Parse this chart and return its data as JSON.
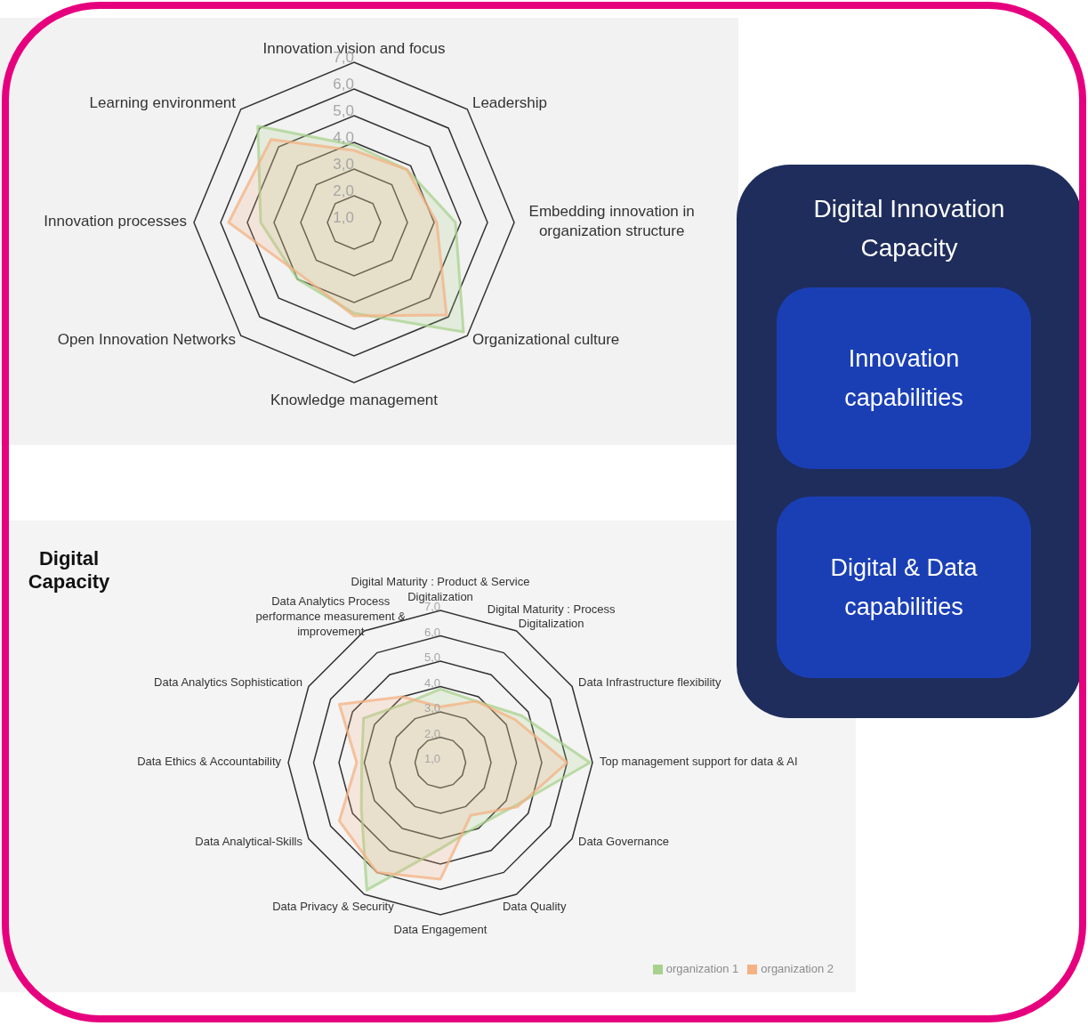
{
  "chart_data": [
    {
      "type": "radar",
      "categories": [
        "Innovation vision and focus",
        "Leadership",
        "Embedding innovation in organization structure",
        "Organizational culture",
        "Knowledge management",
        "Open Innovation Networks",
        "Innovation processes",
        "Learning environment"
      ],
      "series": [
        {
          "color": "#a9d18e",
          "values": [
            3.9,
            3.8,
            4.8,
            6.8,
            4.4,
            4.0,
            4.5,
            6.1
          ]
        },
        {
          "color": "#f4b183",
          "values": [
            3.7,
            3.8,
            4.1,
            5.9,
            4.5,
            3.8,
            5.7,
            5.4
          ]
        }
      ],
      "ylim": [
        1,
        7
      ],
      "yticks": [
        {
          "value": 1,
          "label": "1,0"
        },
        {
          "value": 2,
          "label": "2,0"
        },
        {
          "value": 3,
          "label": "3,0"
        },
        {
          "value": 4,
          "label": "4,0"
        },
        {
          "value": 5,
          "label": "5,0"
        },
        {
          "value": 6,
          "label": "6,0"
        },
        {
          "value": 7,
          "label": "7,0"
        }
      ],
      "grid": true
    },
    {
      "type": "radar",
      "title": "Digital Capacity",
      "categories": [
        "Digital Maturity : Product & Service Digitalization",
        "Digital Maturity : Process Digitalization",
        "Data Infrastructure flexibility",
        "Top management support for data & AI",
        "Data Governance",
        "Data Quality",
        "Data Engagement",
        "Data Privacy & Security",
        "Data Analytical-Skills",
        "Data Ethics & Accountability",
        "Data Analytics Sophistication",
        "Data Analytics Process performance measurement & improvement"
      ],
      "series": [
        {
          "name": "organization 1",
          "color": "#a9d18e",
          "values": [
            3.9,
            3.8,
            4.7,
            6.9,
            4.4,
            3.9,
            4.4,
            6.8,
            4.6,
            4.1,
            4.5,
            3.7
          ]
        },
        {
          "name": "organization 2",
          "color": "#f4b183",
          "values": [
            3.2,
            3.8,
            4.4,
            6.0,
            4.5,
            3.4,
            5.6,
            6.0,
            5.6,
            4.3,
            5.6,
            4.0
          ]
        }
      ],
      "ylim": [
        1,
        7
      ],
      "yticks": [
        {
          "value": 1,
          "label": "1,0"
        },
        {
          "value": 2,
          "label": "2,0"
        },
        {
          "value": 3,
          "label": "3,0"
        },
        {
          "value": 4,
          "label": "4,0"
        },
        {
          "value": 5,
          "label": "5,0"
        },
        {
          "value": 6,
          "label": "6,0"
        },
        {
          "value": 7,
          "label": "7,0"
        }
      ],
      "grid": true,
      "legend": "bottom right"
    },
    {
      "type": "other",
      "title": "Digital Innovation Capacity",
      "annotations": [
        "Innovation capabilities",
        "Digital & Data capabilities"
      ]
    }
  ]
}
